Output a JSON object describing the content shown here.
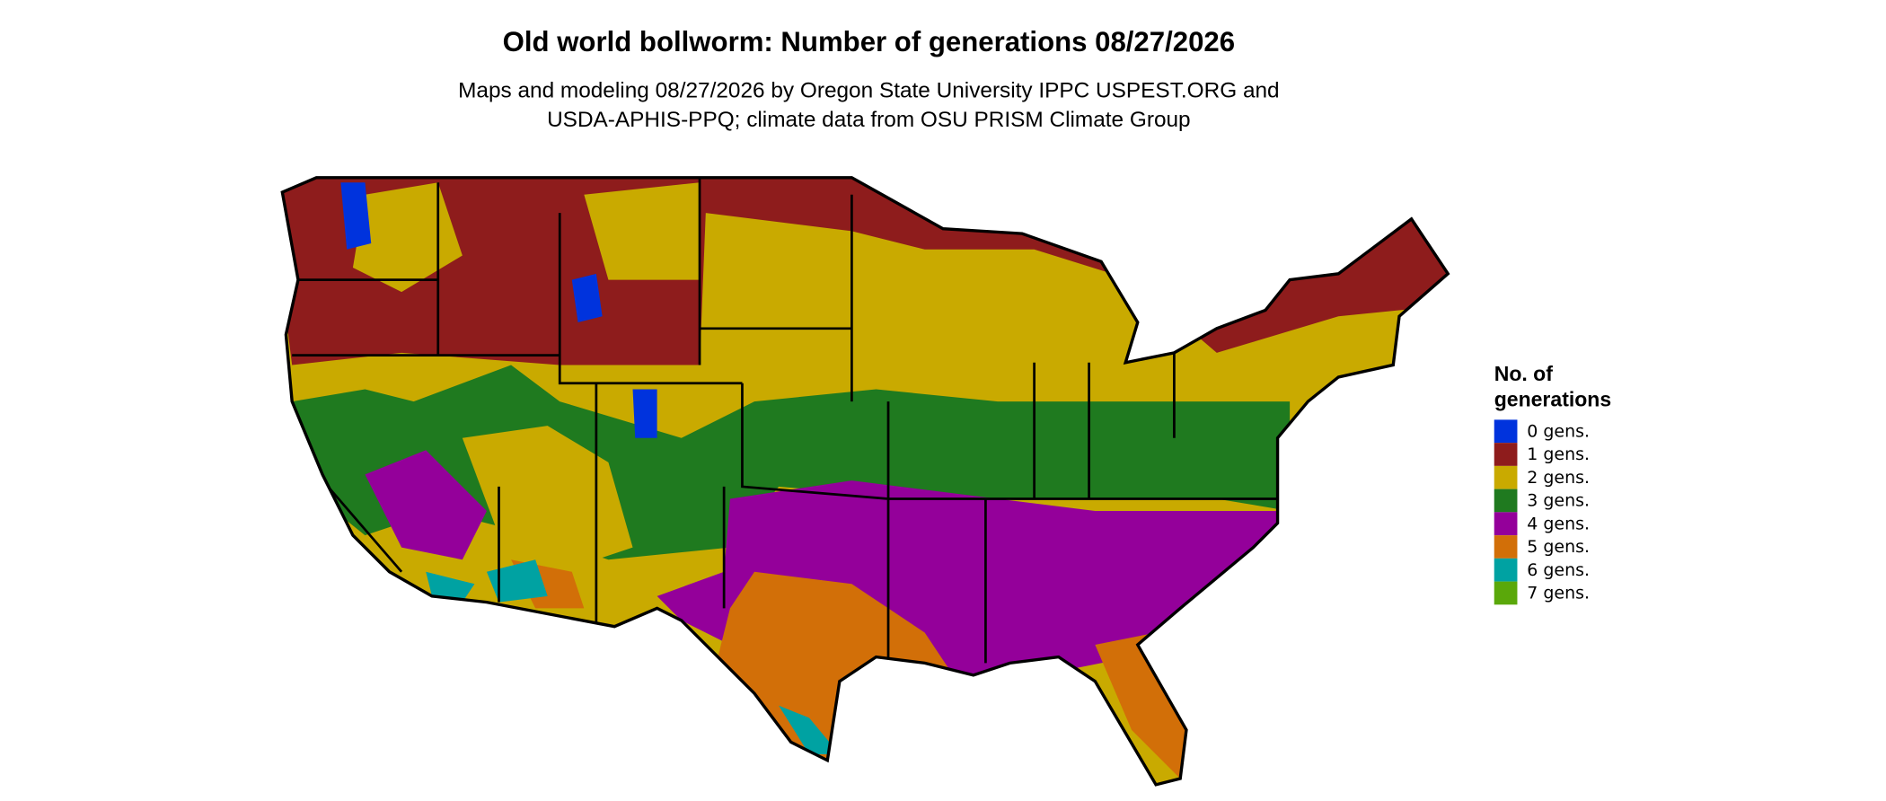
{
  "title": "Old world bollworm: Number of generations 08/27/2026",
  "subtitle_lines": [
    "Maps and modeling 08/27/2026 by Oregon State University IPPC USPEST.ORG and",
    "USDA-APHIS-PPQ; climate data from OSU PRISM Climate Group"
  ],
  "legend": {
    "title_lines": [
      "No. of",
      "generations"
    ],
    "items": [
      {
        "label": "0 gens.",
        "color": "#0033dd"
      },
      {
        "label": "1 gens.",
        "color": "#8e1c1c"
      },
      {
        "label": "2 gens.",
        "color": "#c9aa00"
      },
      {
        "label": "3 gens.",
        "color": "#1f7a1f"
      },
      {
        "label": "4 gens.",
        "color": "#94009a"
      },
      {
        "label": "5 gens.",
        "color": "#d26f08"
      },
      {
        "label": "6 gens.",
        "color": "#00a2a2"
      },
      {
        "label": "7 gens.",
        "color": "#5aa80a"
      }
    ]
  }
}
